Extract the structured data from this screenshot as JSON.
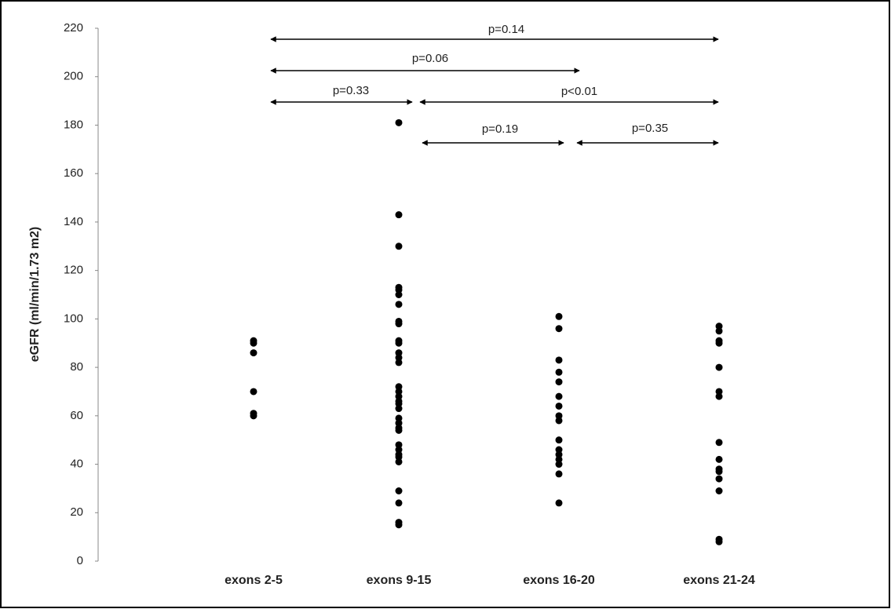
{
  "chart_data": {
    "type": "strip",
    "y_label": "eGFR (ml/min/1.73 m2)",
    "categories": [
      "exons 2-5",
      "exons 9-15",
      "exons 16-20",
      "exons 21-24"
    ],
    "values": [
      [
        91,
        90,
        86,
        70,
        61,
        60
      ],
      [
        181,
        143,
        130,
        113,
        112,
        110,
        106,
        99,
        98,
        91,
        90,
        86,
        84,
        82,
        72,
        70,
        68,
        66,
        65,
        63,
        59,
        57,
        55,
        54,
        48,
        46,
        44,
        43,
        41,
        29,
        24,
        16,
        15
      ],
      [
        101,
        96,
        83,
        78,
        74,
        68,
        64,
        60,
        58,
        50,
        46,
        44,
        42,
        40,
        36,
        24
      ],
      [
        97,
        95,
        91,
        90,
        80,
        70,
        68,
        49,
        42,
        38,
        37,
        34,
        29,
        9,
        8
      ]
    ],
    "color": "#000000",
    "ylim": [
      0,
      220
    ],
    "yticks": [
      0,
      20,
      40,
      60,
      80,
      100,
      120,
      140,
      160,
      180,
      200,
      220
    ],
    "annotations": [
      "p=0.14",
      "p=0.06",
      "p=0.33",
      "p<0.01",
      "p=0.19",
      "p=0.35"
    ]
  }
}
